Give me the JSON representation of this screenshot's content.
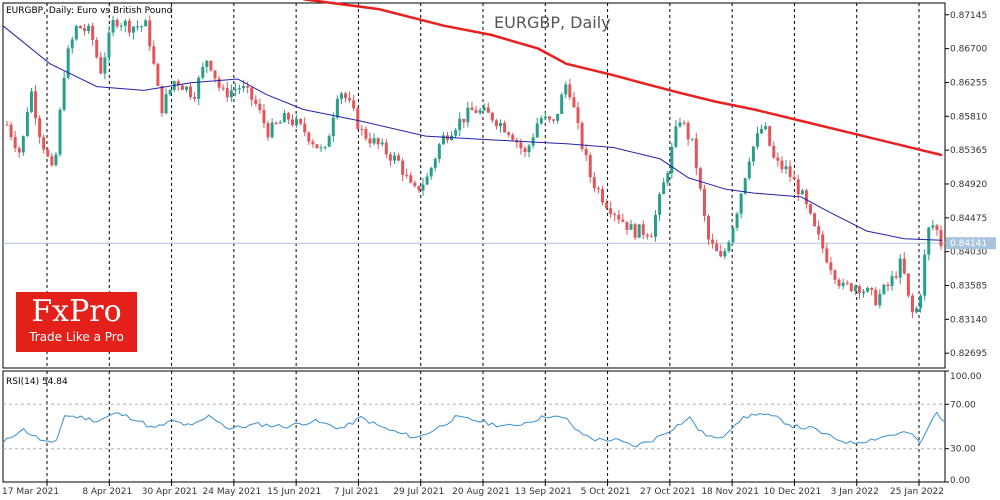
{
  "header": {
    "symbol_line": "EURGBP, Daily:  Euro vs British Pound",
    "title": "EURGBP, Daily"
  },
  "logo": {
    "main": "FxPro",
    "tagline": "Trade Like a Pro",
    "color": "#e3211a"
  },
  "rsi_panel": {
    "label": "RSI(14) 54.84",
    "levels": [
      70,
      30
    ],
    "ticks": [
      "100.00",
      "70.00",
      "30.00",
      "0.00"
    ]
  },
  "colors": {
    "bull": "#2a9e8a",
    "bear": "#e0565a",
    "ma_slow": "#e82020",
    "ma_fast": "#2222aa",
    "rsi": "#3a8fd0",
    "current_price_line": "#aac4e0",
    "badge": "#a8c4dc"
  },
  "chart_data": [
    {
      "type": "candlestick",
      "title": "EURGBP, Daily",
      "price_ticks": [
        "0.87145",
        "0.86700",
        "0.86255",
        "0.85810",
        "0.85365",
        "0.84920",
        "0.84475",
        "0.84030",
        "0.83585",
        "0.83140",
        "0.82695"
      ],
      "ylim": [
        0.825,
        0.873
      ],
      "current_price": "0.84141",
      "x_labels": [
        "17 Mar 2021",
        "8 Apr 2021",
        "30 Apr 2021",
        "24 May 2021",
        "15 Jun 2021",
        "7 Jul 2021",
        "29 Jul 2021",
        "20 Aug 2021",
        "13 Sep 2021",
        "5 Oct 2021",
        "27 Oct 2021",
        "18 Nov 2021",
        "10 Dec 2021",
        "3 Jan 2022",
        "25 Jan 2022"
      ],
      "series": [
        {
          "name": "MA slow (red)",
          "points": [
            [
              0.32,
              0.8735
            ],
            [
              0.4,
              0.8722
            ],
            [
              0.47,
              0.87
            ],
            [
              0.52,
              0.8688
            ],
            [
              0.57,
              0.867
            ],
            [
              0.6,
              0.865
            ],
            [
              0.65,
              0.8635
            ],
            [
              0.68,
              0.8625
            ],
            [
              0.72,
              0.8612
            ],
            [
              0.76,
              0.86
            ],
            [
              0.8,
              0.859
            ],
            [
              0.85,
              0.8575
            ],
            [
              0.9,
              0.856
            ],
            [
              0.95,
              0.8545
            ],
            [
              1.0,
              0.853
            ]
          ]
        },
        {
          "name": "MA fast (blue)",
          "points": [
            [
              0.0,
              0.87
            ],
            [
              0.05,
              0.865
            ],
            [
              0.1,
              0.862
            ],
            [
              0.15,
              0.8615
            ],
            [
              0.2,
              0.8625
            ],
            [
              0.25,
              0.863
            ],
            [
              0.28,
              0.861
            ],
            [
              0.32,
              0.859
            ],
            [
              0.38,
              0.8575
            ],
            [
              0.45,
              0.8555
            ],
            [
              0.52,
              0.855
            ],
            [
              0.6,
              0.8545
            ],
            [
              0.65,
              0.854
            ],
            [
              0.7,
              0.8525
            ],
            [
              0.73,
              0.85
            ],
            [
              0.77,
              0.8485
            ],
            [
              0.8,
              0.848
            ],
            [
              0.85,
              0.8475
            ],
            [
              0.88,
              0.8455
            ],
            [
              0.92,
              0.843
            ],
            [
              0.96,
              0.842
            ],
            [
              1.0,
              0.8418
            ]
          ]
        }
      ],
      "price_path": [
        [
          0.0,
          0.857
        ],
        [
          0.015,
          0.853
        ],
        [
          0.025,
          0.862
        ],
        [
          0.035,
          0.856
        ],
        [
          0.05,
          0.85
        ],
        [
          0.062,
          0.865
        ],
        [
          0.075,
          0.87
        ],
        [
          0.09,
          0.869
        ],
        [
          0.1,
          0.864
        ],
        [
          0.115,
          0.871
        ],
        [
          0.13,
          0.87
        ],
        [
          0.15,
          0.87
        ],
        [
          0.165,
          0.859
        ],
        [
          0.18,
          0.863
        ],
        [
          0.2,
          0.861
        ],
        [
          0.215,
          0.866
        ],
        [
          0.23,
          0.861
        ],
        [
          0.25,
          0.862
        ],
        [
          0.265,
          0.86
        ],
        [
          0.28,
          0.856
        ],
        [
          0.3,
          0.858
        ],
        [
          0.32,
          0.856
        ],
        [
          0.34,
          0.853
        ],
        [
          0.355,
          0.862
        ],
        [
          0.365,
          0.86
        ],
        [
          0.38,
          0.856
        ],
        [
          0.4,
          0.854
        ],
        [
          0.42,
          0.852
        ],
        [
          0.435,
          0.848
        ],
        [
          0.45,
          0.85
        ],
        [
          0.465,
          0.855
        ],
        [
          0.48,
          0.857
        ],
        [
          0.5,
          0.859
        ],
        [
          0.52,
          0.858
        ],
        [
          0.54,
          0.856
        ],
        [
          0.555,
          0.853
        ],
        [
          0.57,
          0.858
        ],
        [
          0.585,
          0.857
        ],
        [
          0.6,
          0.863
        ],
        [
          0.612,
          0.856
        ],
        [
          0.625,
          0.85
        ],
        [
          0.64,
          0.847
        ],
        [
          0.655,
          0.845
        ],
        [
          0.67,
          0.843
        ],
        [
          0.69,
          0.843
        ],
        [
          0.705,
          0.85
        ],
        [
          0.72,
          0.858
        ],
        [
          0.735,
          0.854
        ],
        [
          0.75,
          0.842
        ],
        [
          0.765,
          0.839
        ],
        [
          0.78,
          0.845
        ],
        [
          0.795,
          0.853
        ],
        [
          0.81,
          0.857
        ],
        [
          0.822,
          0.852
        ],
        [
          0.835,
          0.851
        ],
        [
          0.85,
          0.848
        ],
        [
          0.865,
          0.843
        ],
        [
          0.88,
          0.839
        ],
        [
          0.895,
          0.8355
        ],
        [
          0.91,
          0.836
        ],
        [
          0.93,
          0.834
        ],
        [
          0.945,
          0.836
        ],
        [
          0.958,
          0.839
        ],
        [
          0.968,
          0.832
        ],
        [
          0.976,
          0.833
        ],
        [
          0.986,
          0.843
        ],
        [
          0.993,
          0.844
        ],
        [
          1.0,
          0.8414
        ]
      ]
    },
    {
      "type": "line",
      "title": "RSI(14) 54.84",
      "ylim": [
        0,
        100
      ],
      "series": [
        {
          "name": "RSI(14)",
          "points": [
            [
              0.0,
              35
            ],
            [
              0.02,
              48
            ],
            [
              0.04,
              38
            ],
            [
              0.055,
              33
            ],
            [
              0.065,
              60
            ],
            [
              0.085,
              58
            ],
            [
              0.1,
              55
            ],
            [
              0.12,
              62
            ],
            [
              0.14,
              57
            ],
            [
              0.16,
              48
            ],
            [
              0.18,
              55
            ],
            [
              0.2,
              50
            ],
            [
              0.22,
              60
            ],
            [
              0.24,
              48
            ],
            [
              0.27,
              52
            ],
            [
              0.3,
              50
            ],
            [
              0.33,
              55
            ],
            [
              0.36,
              48
            ],
            [
              0.38,
              58
            ],
            [
              0.4,
              50
            ],
            [
              0.42,
              44
            ],
            [
              0.44,
              40
            ],
            [
              0.46,
              48
            ],
            [
              0.48,
              58
            ],
            [
              0.5,
              56
            ],
            [
              0.52,
              52
            ],
            [
              0.54,
              50
            ],
            [
              0.56,
              55
            ],
            [
              0.58,
              60
            ],
            [
              0.6,
              56
            ],
            [
              0.61,
              45
            ],
            [
              0.63,
              38
            ],
            [
              0.65,
              38
            ],
            [
              0.67,
              32
            ],
            [
              0.69,
              38
            ],
            [
              0.71,
              48
            ],
            [
              0.73,
              58
            ],
            [
              0.74,
              45
            ],
            [
              0.76,
              38
            ],
            [
              0.78,
              55
            ],
            [
              0.8,
              62
            ],
            [
              0.82,
              58
            ],
            [
              0.84,
              50
            ],
            [
              0.86,
              48
            ],
            [
              0.88,
              40
            ],
            [
              0.9,
              35
            ],
            [
              0.92,
              38
            ],
            [
              0.94,
              42
            ],
            [
              0.96,
              45
            ],
            [
              0.975,
              35
            ],
            [
              0.99,
              63
            ],
            [
              1.0,
              55
            ]
          ]
        }
      ]
    }
  ]
}
